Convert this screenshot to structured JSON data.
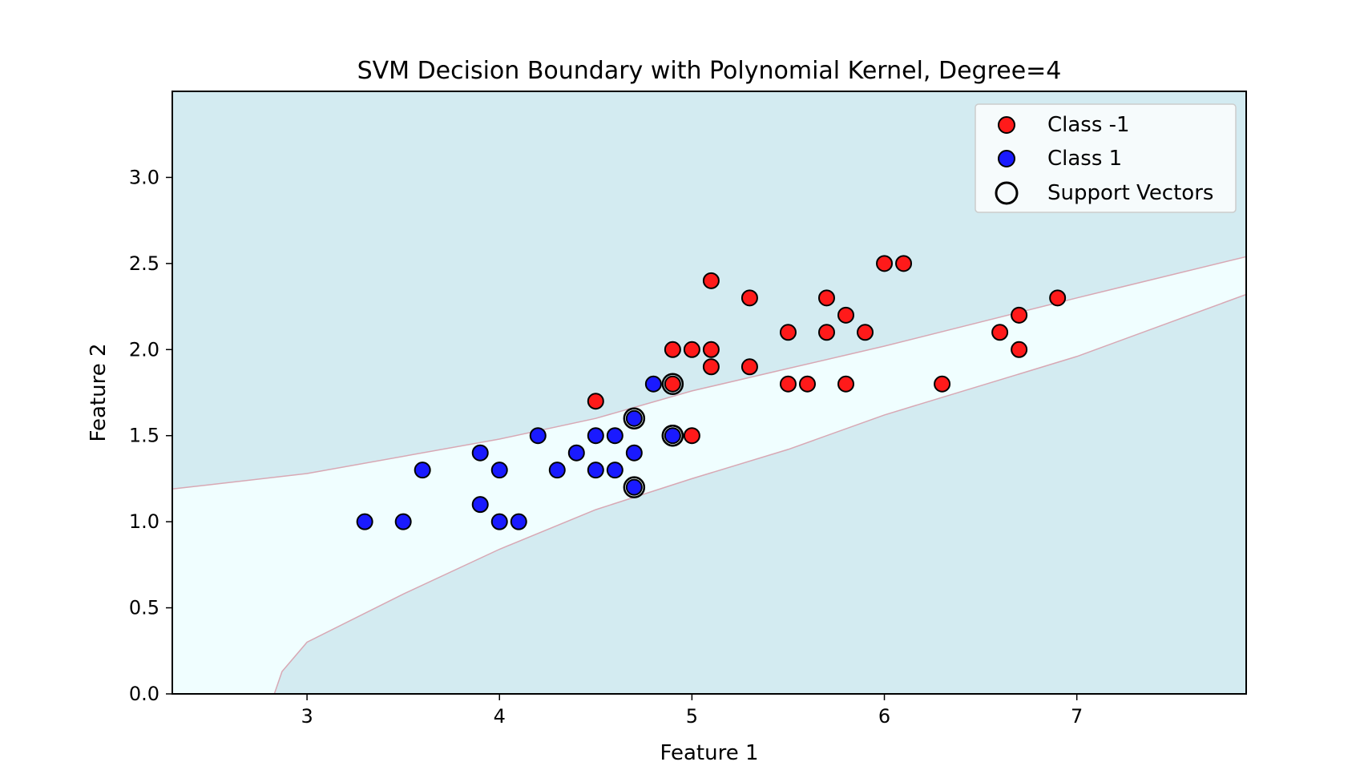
{
  "chart_data": {
    "type": "scatter",
    "title": "SVM Decision Boundary with Polynomial Kernel, Degree=4",
    "xlabel": "Feature 1",
    "ylabel": "Feature 2",
    "xlim": [
      2.3,
      7.88
    ],
    "ylim": [
      0.0,
      3.5
    ],
    "xticks": [
      3,
      4,
      5,
      6,
      7
    ],
    "yticks": [
      0.0,
      0.5,
      1.0,
      1.5,
      2.0,
      2.5,
      3.0
    ],
    "xtick_labels": [
      "3",
      "4",
      "5",
      "6",
      "7"
    ],
    "ytick_labels": [
      "0.0",
      "0.5",
      "1.0",
      "1.5",
      "2.0",
      "2.5",
      "3.0"
    ],
    "grid": false,
    "legend_position": "top-right",
    "colors": {
      "background_region": "#d3ebf1",
      "band_region": "#f0feff",
      "boundary_line": "#d8a8b4",
      "class_neg": "#ff1a1a",
      "class_pos": "#1a1aff",
      "marker_edge": "#000000",
      "support_vector_ring": "#000000"
    },
    "decision_band": {
      "upper": [
        [
          2.3,
          1.19
        ],
        [
          3.0,
          1.28
        ],
        [
          4.0,
          1.48
        ],
        [
          4.5,
          1.6
        ],
        [
          5.0,
          1.76
        ],
        [
          5.5,
          1.89
        ],
        [
          6.0,
          2.02
        ],
        [
          7.0,
          2.3
        ],
        [
          7.88,
          2.54
        ]
      ],
      "lower": [
        [
          2.83,
          0.0
        ],
        [
          2.87,
          0.13
        ],
        [
          3.0,
          0.3
        ],
        [
          3.5,
          0.58
        ],
        [
          4.0,
          0.84
        ],
        [
          4.5,
          1.07
        ],
        [
          5.0,
          1.25
        ],
        [
          5.5,
          1.42
        ],
        [
          6.0,
          1.62
        ],
        [
          7.0,
          1.96
        ],
        [
          7.88,
          2.32
        ]
      ]
    },
    "series": [
      {
        "name": "Class -1",
        "points": [
          [
            4.5,
            1.7
          ],
          [
            4.9,
            1.8
          ],
          [
            4.9,
            2.0
          ],
          [
            5.0,
            2.0
          ],
          [
            5.0,
            1.5
          ],
          [
            5.1,
            2.4
          ],
          [
            5.1,
            2.0
          ],
          [
            5.1,
            1.9
          ],
          [
            5.3,
            2.3
          ],
          [
            5.3,
            1.9
          ],
          [
            5.5,
            2.1
          ],
          [
            5.5,
            1.8
          ],
          [
            5.6,
            1.8
          ],
          [
            5.7,
            2.3
          ],
          [
            5.7,
            2.1
          ],
          [
            5.8,
            2.2
          ],
          [
            5.8,
            1.8
          ],
          [
            5.9,
            2.1
          ],
          [
            6.0,
            2.5
          ],
          [
            6.1,
            2.5
          ],
          [
            6.3,
            1.8
          ],
          [
            6.6,
            2.1
          ],
          [
            6.7,
            2.2
          ],
          [
            6.7,
            2.0
          ],
          [
            6.9,
            2.3
          ]
        ]
      },
      {
        "name": "Class 1",
        "points": [
          [
            3.3,
            1.0
          ],
          [
            3.5,
            1.0
          ],
          [
            3.6,
            1.3
          ],
          [
            3.9,
            1.4
          ],
          [
            3.9,
            1.1
          ],
          [
            4.0,
            1.3
          ],
          [
            4.0,
            1.0
          ],
          [
            4.1,
            1.0
          ],
          [
            4.2,
            1.5
          ],
          [
            4.3,
            1.3
          ],
          [
            4.4,
            1.4
          ],
          [
            4.5,
            1.5
          ],
          [
            4.5,
            1.3
          ],
          [
            4.6,
            1.5
          ],
          [
            4.6,
            1.3
          ],
          [
            4.7,
            1.6
          ],
          [
            4.7,
            1.4
          ],
          [
            4.7,
            1.2
          ],
          [
            4.8,
            1.8
          ],
          [
            4.9,
            1.5
          ]
        ]
      },
      {
        "name": "Support Vectors",
        "points": [
          [
            4.7,
            1.6
          ],
          [
            4.7,
            1.2
          ],
          [
            4.9,
            1.8
          ],
          [
            4.9,
            1.5
          ],
          [
            4.9,
            1.5
          ]
        ]
      }
    ]
  }
}
